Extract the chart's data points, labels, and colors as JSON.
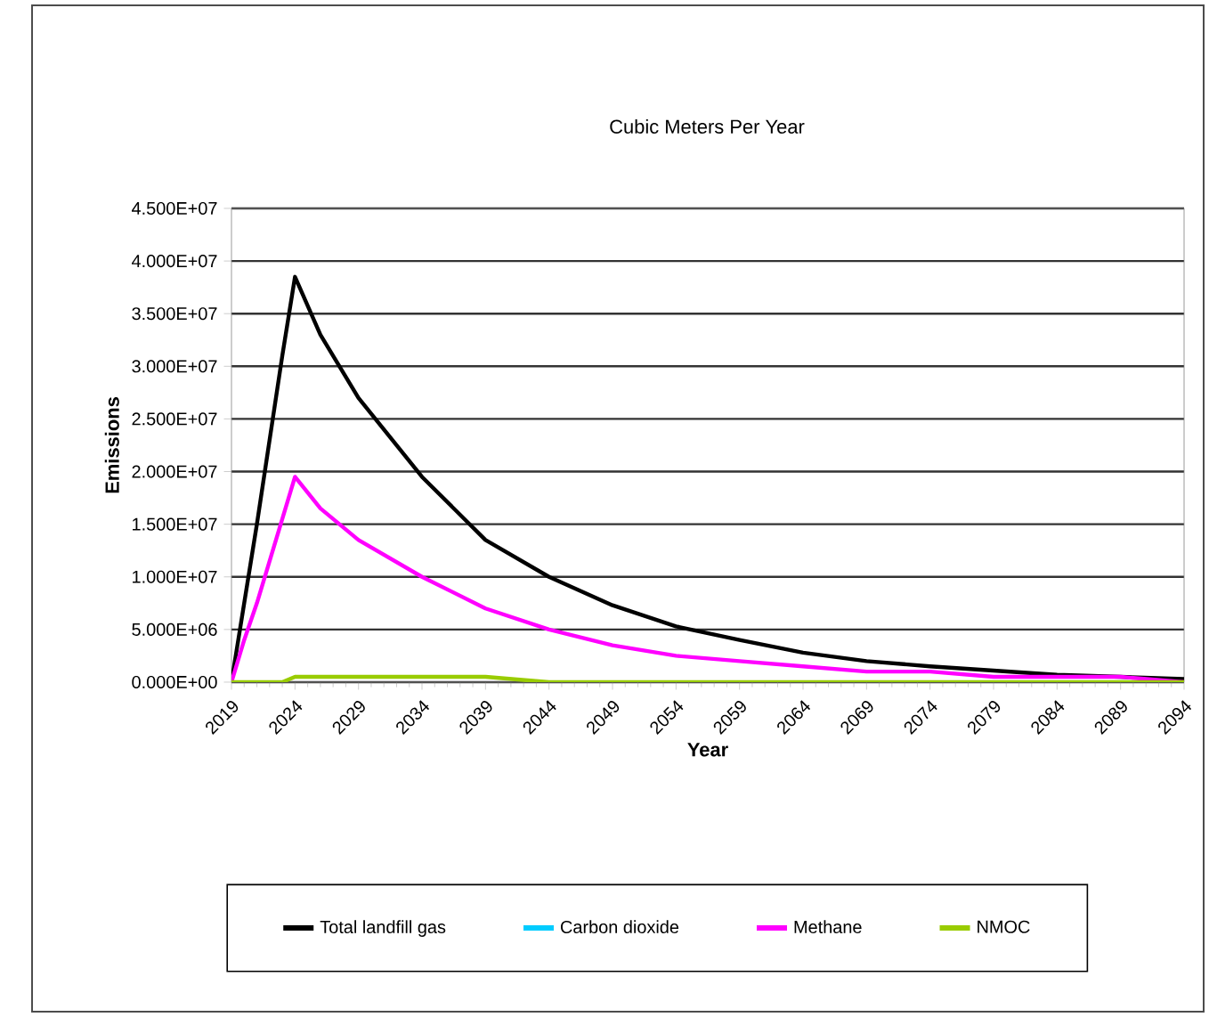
{
  "chart_data": {
    "type": "line",
    "title": "Cubic Meters Per Year",
    "xlabel": "Year",
    "ylabel": "Emissions",
    "x": [
      2019,
      2020,
      2021,
      2022,
      2023,
      2024,
      2026,
      2029,
      2034,
      2039,
      2044,
      2049,
      2054,
      2059,
      2064,
      2069,
      2074,
      2079,
      2084,
      2089,
      2094
    ],
    "xlim": [
      2019,
      2094
    ],
    "xticks": [
      2019,
      2024,
      2029,
      2034,
      2039,
      2044,
      2049,
      2054,
      2059,
      2064,
      2069,
      2074,
      2079,
      2084,
      2089,
      2094
    ],
    "ylim": [
      0,
      45000000
    ],
    "yticks": [
      {
        "value": 0,
        "label": "0.000E+00"
      },
      {
        "value": 5000000,
        "label": "5.000E+06"
      },
      {
        "value": 10000000,
        "label": "1.000E+07"
      },
      {
        "value": 15000000,
        "label": "1.500E+07"
      },
      {
        "value": 20000000,
        "label": "2.000E+07"
      },
      {
        "value": 25000000,
        "label": "2.500E+07"
      },
      {
        "value": 30000000,
        "label": "3.000E+07"
      },
      {
        "value": 35000000,
        "label": "3.500E+07"
      },
      {
        "value": 40000000,
        "label": "4.000E+07"
      },
      {
        "value": 45000000,
        "label": "4.500E+07"
      }
    ],
    "grid": "y",
    "legend": "bottom",
    "marker": "none",
    "line_style": "solid",
    "series": [
      {
        "name": "Total landfill gas",
        "color": "#000000",
        "values": [
          0,
          7500000,
          15000000,
          23000000,
          31000000,
          38500000,
          33000000,
          27000000,
          19500000,
          13500000,
          10000000,
          7300000,
          5300000,
          4000000,
          2800000,
          2000000,
          1500000,
          1100000,
          700000,
          500000,
          300000
        ]
      },
      {
        "name": "Carbon dioxide",
        "color": "#00ccff",
        "values": [
          null,
          null,
          null,
          null,
          null,
          null,
          null,
          null,
          null,
          null,
          null,
          null,
          null,
          null,
          null,
          null,
          null,
          null,
          null,
          null,
          null
        ]
      },
      {
        "name": "Methane",
        "color": "#ff00ff",
        "values": [
          0,
          4000000,
          7500000,
          11500000,
          15500000,
          19500000,
          16500000,
          13500000,
          10000000,
          7000000,
          5000000,
          3500000,
          2500000,
          2000000,
          1500000,
          1000000,
          1000000,
          500000,
          500000,
          500000,
          0
        ]
      },
      {
        "name": "NMOC",
        "color": "#99cc00",
        "values": [
          0,
          0,
          0,
          0,
          0,
          500000,
          500000,
          500000,
          500000,
          500000,
          0,
          0,
          0,
          0,
          0,
          0,
          0,
          0,
          0,
          0,
          0
        ]
      }
    ]
  }
}
